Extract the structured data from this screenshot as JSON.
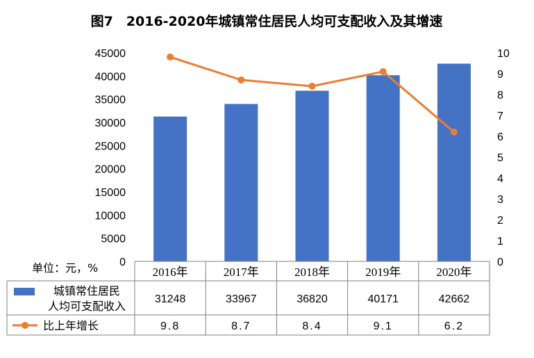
{
  "chart_data": {
    "type": "bar",
    "title": "图7　2016-2020年城镇常住居民人均可支配收入及其增速",
    "unit_label": "单位：元，%",
    "categories": [
      "2016年",
      "2017年",
      "2018年",
      "2019年",
      "2020年"
    ],
    "series": [
      {
        "name": "城镇常住居民人均可支配收入",
        "name_lines": [
          "城镇常住居民",
          "人均可支配收入"
        ],
        "type": "bar",
        "axis": "left",
        "color": "#4472C4",
        "values": [
          31248,
          33967,
          36820,
          40171,
          42662
        ],
        "value_labels": [
          "31248",
          "33967",
          "36820",
          "40171",
          "42662"
        ]
      },
      {
        "name": "比上年增长",
        "type": "line",
        "axis": "right",
        "color": "#ED7D31",
        "values": [
          9.8,
          8.7,
          8.4,
          9.1,
          6.2
        ],
        "value_labels": [
          "9.8",
          "8.7",
          "8.4",
          "9.1",
          "6.2"
        ]
      }
    ],
    "y_left": {
      "min": 0,
      "max": 45000,
      "ticks": [
        "0",
        "5000",
        "10000",
        "15000",
        "20000",
        "25000",
        "30000",
        "35000",
        "40000",
        "45000"
      ]
    },
    "y_right": {
      "min": 0,
      "max": 10,
      "ticks": [
        "0",
        "1",
        "2",
        "3",
        "4",
        "5",
        "6",
        "7",
        "8",
        "9",
        "10"
      ]
    },
    "grid": false,
    "legend": "data-table"
  }
}
